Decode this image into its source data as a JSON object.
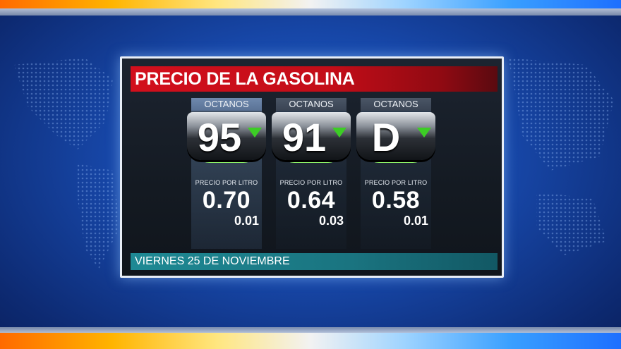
{
  "title": "PRECIO DE LA GASOLINA",
  "date": "VIERNES 25 DE NOVIEMBRE",
  "fuels": [
    {
      "octane_label": "OCTANOS",
      "grade": "95",
      "price_label": "PRECIO POR LITRO",
      "price": "0.70",
      "change": "0.01",
      "trend_icon": "arrow-down-icon"
    },
    {
      "octane_label": "OCTANOS",
      "grade": "91",
      "price_label": "PRECIO POR LITRO",
      "price": "0.64",
      "change": "0.03",
      "trend_icon": "arrow-down-icon"
    },
    {
      "octane_label": "OCTANOS",
      "grade": "D",
      "price_label": "PRECIO POR LITRO",
      "price": "0.58",
      "change": "0.01",
      "trend_icon": "arrow-down-icon"
    }
  ],
  "colors": {
    "title_bar": "#d20f1c",
    "date_bar": "#1e8994",
    "trend": "#3ccd25",
    "background": "#1747a8"
  }
}
